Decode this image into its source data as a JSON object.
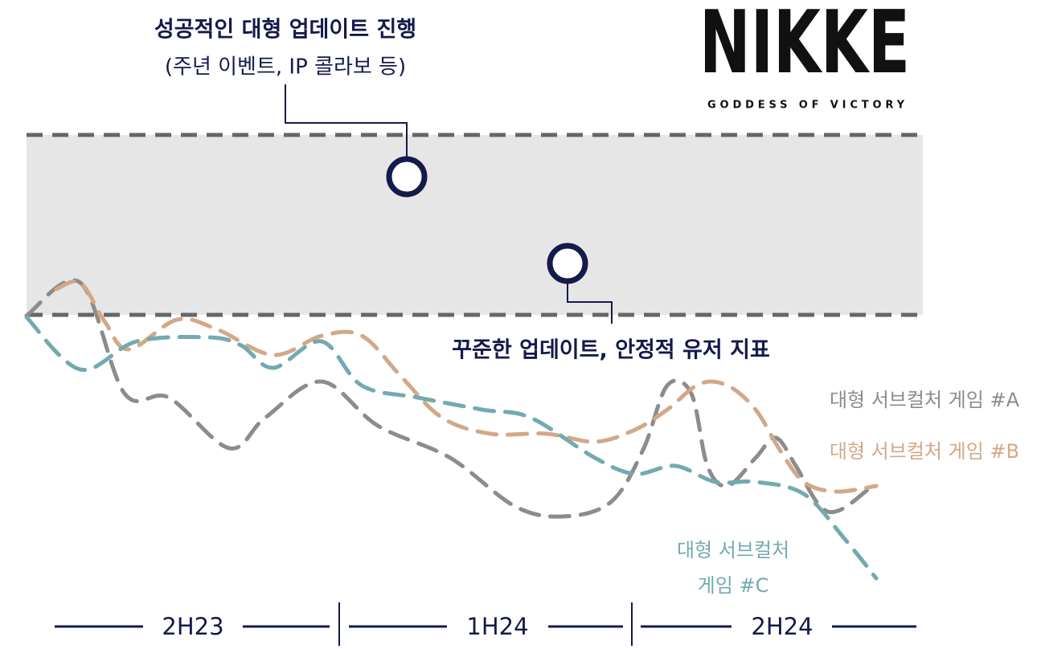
{
  "header": {
    "title": "성공적인 대형 업데이트 진행",
    "subtitle": "(주년 이벤트, IP 콜라보 등)"
  },
  "logo": {
    "name": "NIKKE",
    "tagline": "GODDESS OF VICTORY"
  },
  "band_label": "꾸준한 업데이트, 안정적 유저 지표",
  "legend": {
    "a": "대형 서브컬처 게임 #A",
    "b": "대형 서브컬처 게임 #B",
    "c": [
      "대형 서브컬처",
      "게임 #C"
    ]
  },
  "periods": [
    "2H23",
    "1H24",
    "2H24"
  ]
}
